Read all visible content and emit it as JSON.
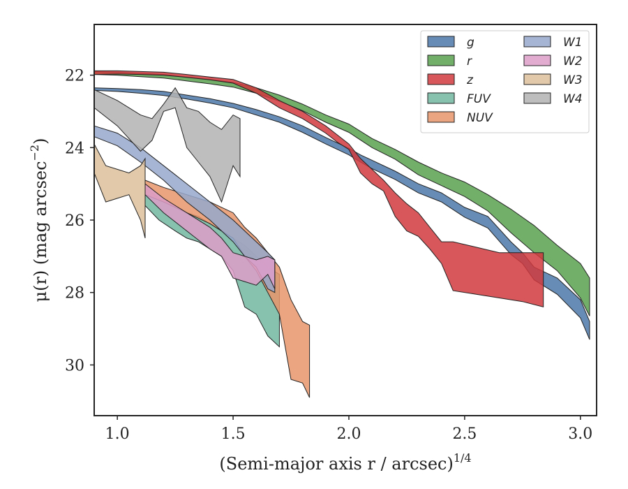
{
  "chart_data": {
    "type": "area",
    "title": "",
    "xlabel": "(Semi-major axis r / arcsec)",
    "xlabel_sup": "1/4",
    "ylabel": "μ(r) (mag arcsec",
    "ylabel_sup": "−2",
    "ylabel_tail": ")",
    "xlim": [
      0.9,
      3.07
    ],
    "ylim": [
      31.4,
      20.6
    ],
    "y_inverted": true,
    "xticks": [
      1.0,
      1.5,
      2.0,
      2.5,
      3.0
    ],
    "xtick_labels": [
      "1.0",
      "1.5",
      "2.0",
      "2.5",
      "3.0"
    ],
    "yticks": [
      22,
      24,
      26,
      28,
      30
    ],
    "ytick_labels": [
      "22",
      "24",
      "26",
      "28",
      "30"
    ],
    "grid": false,
    "legend_position": "top-right",
    "legend_columns": 2,
    "series": [
      {
        "name": "g",
        "color": "#4c78a8",
        "x": [
          0.9,
          1.0,
          1.1,
          1.2,
          1.3,
          1.4,
          1.5,
          1.6,
          1.7,
          1.8,
          1.9,
          2.0,
          2.05,
          2.1,
          2.2,
          2.3,
          2.4,
          2.5,
          2.6,
          2.7,
          2.75,
          2.8,
          2.9,
          3.0,
          3.04
        ],
        "lower": [
          22.35,
          22.37,
          22.4,
          22.45,
          22.55,
          22.65,
          22.78,
          22.95,
          23.15,
          23.4,
          23.72,
          24.02,
          24.2,
          24.35,
          24.65,
          25.0,
          25.25,
          25.65,
          25.9,
          26.6,
          26.9,
          27.3,
          27.6,
          28.2,
          28.8
        ],
        "upper": [
          22.42,
          22.45,
          22.5,
          22.56,
          22.66,
          22.77,
          22.9,
          23.1,
          23.3,
          23.58,
          23.9,
          24.2,
          24.4,
          24.58,
          24.88,
          25.25,
          25.5,
          25.92,
          26.22,
          26.95,
          27.2,
          27.65,
          28.05,
          28.7,
          29.3
        ]
      },
      {
        "name": "r",
        "color": "#59a14f",
        "x": [
          0.9,
          1.0,
          1.1,
          1.2,
          1.3,
          1.4,
          1.5,
          1.6,
          1.7,
          1.8,
          1.9,
          2.0,
          2.1,
          2.2,
          2.3,
          2.4,
          2.5,
          2.6,
          2.7,
          2.8,
          2.9,
          3.0,
          3.04
        ],
        "lower": [
          21.9,
          21.92,
          21.95,
          21.98,
          22.05,
          22.12,
          22.2,
          22.35,
          22.55,
          22.8,
          23.1,
          23.35,
          23.75,
          24.05,
          24.4,
          24.7,
          24.95,
          25.3,
          25.7,
          26.15,
          26.7,
          27.2,
          27.6
        ],
        "upper": [
          21.98,
          22.0,
          22.04,
          22.08,
          22.16,
          22.24,
          22.33,
          22.5,
          22.72,
          22.98,
          23.3,
          23.58,
          24.0,
          24.32,
          24.75,
          25.05,
          25.35,
          25.75,
          26.35,
          26.9,
          27.4,
          28.15,
          28.65
        ]
      },
      {
        "name": "z",
        "color": "#d0393e",
        "x": [
          0.9,
          1.0,
          1.1,
          1.2,
          1.3,
          1.4,
          1.5,
          1.6,
          1.7,
          1.8,
          1.9,
          1.95,
          2.0,
          2.05,
          2.1,
          2.15,
          2.2,
          2.25,
          2.3,
          2.35,
          2.4,
          2.45,
          2.55,
          2.65,
          2.75,
          2.84
        ],
        "lower": [
          21.88,
          21.88,
          21.9,
          21.92,
          21.98,
          22.05,
          22.12,
          22.35,
          22.7,
          23.0,
          23.4,
          23.65,
          23.9,
          24.3,
          24.6,
          24.9,
          25.25,
          25.55,
          25.8,
          26.2,
          26.6,
          26.6,
          26.75,
          26.9,
          26.9,
          26.9
        ],
        "upper": [
          21.98,
          21.97,
          21.98,
          22.0,
          22.06,
          22.13,
          22.22,
          22.5,
          22.9,
          23.2,
          23.6,
          23.85,
          24.05,
          24.7,
          25.0,
          25.2,
          25.9,
          26.3,
          26.45,
          26.8,
          27.2,
          27.95,
          28.05,
          28.15,
          28.25,
          28.4
        ]
      },
      {
        "name": "FUV",
        "color": "#72b7a1",
        "x": [
          1.12,
          1.18,
          1.25,
          1.3,
          1.35,
          1.4,
          1.45,
          1.5,
          1.55,
          1.6,
          1.65,
          1.7
        ],
        "lower": [
          25.1,
          25.4,
          25.6,
          25.8,
          25.9,
          26.1,
          26.3,
          26.5,
          26.7,
          27.0,
          27.3,
          27.5
        ],
        "upper": [
          25.6,
          26.0,
          26.3,
          26.5,
          26.6,
          26.8,
          27.0,
          27.4,
          28.4,
          28.6,
          29.2,
          29.5
        ]
      },
      {
        "name": "NUV",
        "color": "#e8956a",
        "x": [
          1.12,
          1.2,
          1.3,
          1.4,
          1.5,
          1.55,
          1.6,
          1.65,
          1.7,
          1.75,
          1.8,
          1.83
        ],
        "lower": [
          24.9,
          25.1,
          25.3,
          25.5,
          25.8,
          26.2,
          26.5,
          26.9,
          27.3,
          28.2,
          28.8,
          28.9
        ],
        "upper": [
          25.3,
          25.5,
          25.8,
          26.1,
          26.5,
          27.0,
          27.4,
          28.0,
          28.6,
          30.4,
          30.5,
          30.9
        ]
      },
      {
        "name": "W1",
        "color": "#97a8cc",
        "x": [
          0.9,
          1.0,
          1.1,
          1.2,
          1.3,
          1.4,
          1.5,
          1.55,
          1.6,
          1.65,
          1.68
        ],
        "lower": [
          23.4,
          23.6,
          24.0,
          24.5,
          25.0,
          25.5,
          26.0,
          26.3,
          26.6,
          26.9,
          27.1
        ],
        "upper": [
          23.7,
          23.95,
          24.4,
          24.9,
          25.5,
          26.0,
          26.6,
          27.0,
          27.3,
          27.9,
          28.0
        ]
      },
      {
        "name": "W2",
        "color": "#dd9dc9",
        "x": [
          1.12,
          1.2,
          1.3,
          1.4,
          1.45,
          1.5,
          1.55,
          1.6,
          1.65,
          1.68
        ],
        "lower": [
          25.0,
          25.4,
          25.8,
          26.2,
          26.5,
          26.9,
          27.0,
          27.1,
          27.0,
          27.1
        ],
        "upper": [
          25.3,
          25.8,
          26.3,
          26.8,
          27.0,
          27.6,
          27.7,
          27.8,
          27.5,
          27.9
        ]
      },
      {
        "name": "W3",
        "color": "#dcbf9b",
        "x": [
          0.9,
          0.95,
          1.0,
          1.05,
          1.1,
          1.12
        ],
        "lower": [
          23.9,
          24.5,
          24.6,
          24.7,
          24.5,
          24.3
        ],
        "upper": [
          24.7,
          25.5,
          25.4,
          25.3,
          26.0,
          26.5
        ]
      },
      {
        "name": "W4",
        "color": "#b3b3b3",
        "x": [
          0.9,
          1.0,
          1.1,
          1.15,
          1.2,
          1.25,
          1.3,
          1.35,
          1.4,
          1.45,
          1.5,
          1.53
        ],
        "lower": [
          22.4,
          22.7,
          23.1,
          23.2,
          22.8,
          22.35,
          22.9,
          23.0,
          23.3,
          23.5,
          23.1,
          23.2
        ],
        "upper": [
          22.9,
          23.4,
          24.1,
          23.8,
          23.0,
          22.9,
          24.0,
          24.4,
          24.8,
          25.5,
          24.5,
          24.8
        ]
      }
    ]
  }
}
